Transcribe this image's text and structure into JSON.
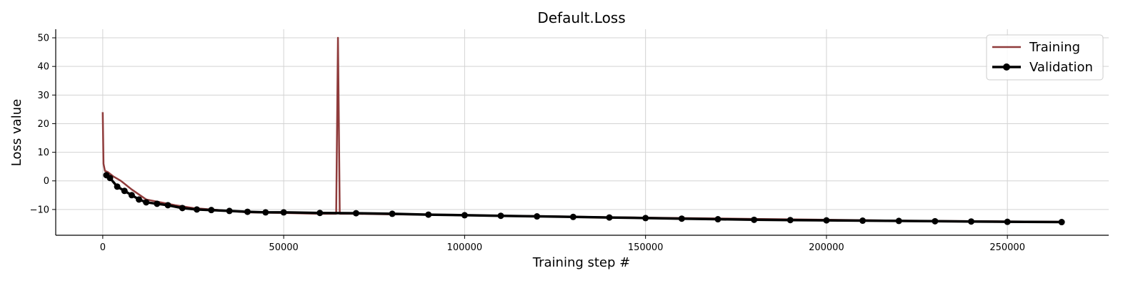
{
  "chart_data": {
    "type": "line",
    "title": "Default.Loss",
    "xlabel": "Training step #",
    "ylabel": "Loss value",
    "xlim": [
      -13000,
      278000
    ],
    "ylim": [
      -19,
      53
    ],
    "xticks": [
      0,
      50000,
      100000,
      150000,
      200000,
      250000
    ],
    "yticks": [
      -10,
      0,
      10,
      20,
      30,
      40,
      50
    ],
    "ytick_labels": [
      "−10",
      "0",
      "10",
      "20",
      "30",
      "40",
      "50"
    ],
    "grid": true,
    "legend_position": "top-right",
    "colors": {
      "training": "#8f3b3b",
      "validation": "#000000",
      "grid": "#d3d3d3"
    },
    "series": [
      {
        "name": "Training",
        "style": "line",
        "x": [
          0,
          200,
          600,
          1500,
          3000,
          5000,
          8000,
          12000,
          16000,
          20000,
          25000,
          30000,
          35000,
          40000,
          50000,
          60000,
          64500,
          65000,
          65500,
          70000,
          80000,
          90000,
          100000,
          120000,
          140000,
          160000,
          180000,
          200000,
          220000,
          240000,
          265000
        ],
        "y": [
          24,
          6,
          3.5,
          3,
          1.5,
          0,
          -3,
          -6.5,
          -7.5,
          -8.5,
          -9.5,
          -10,
          -10.5,
          -11,
          -11.2,
          -11.5,
          -11.5,
          50,
          -11.5,
          -11.5,
          -11.7,
          -11.8,
          -12,
          -12.3,
          -12.7,
          -13,
          -13.3,
          -13.6,
          -13.9,
          -14.1,
          -14.3
        ]
      },
      {
        "name": "Validation",
        "style": "line-marker",
        "x": [
          1000,
          2000,
          4000,
          6000,
          8000,
          10000,
          12000,
          15000,
          18000,
          22000,
          26000,
          30000,
          35000,
          40000,
          45000,
          50000,
          60000,
          70000,
          80000,
          90000,
          100000,
          110000,
          120000,
          130000,
          140000,
          150000,
          160000,
          170000,
          180000,
          190000,
          200000,
          210000,
          220000,
          230000,
          240000,
          250000,
          265000
        ],
        "y": [
          2,
          1,
          -2,
          -3.5,
          -5,
          -6.5,
          -7.5,
          -8,
          -8.5,
          -9.5,
          -10,
          -10.2,
          -10.5,
          -10.8,
          -11,
          -11,
          -11.2,
          -11.3,
          -11.5,
          -11.8,
          -12,
          -12.2,
          -12.4,
          -12.6,
          -12.8,
          -13,
          -13.2,
          -13.4,
          -13.6,
          -13.7,
          -13.8,
          -13.9,
          -14,
          -14.1,
          -14.2,
          -14.3,
          -14.4
        ]
      }
    ]
  }
}
